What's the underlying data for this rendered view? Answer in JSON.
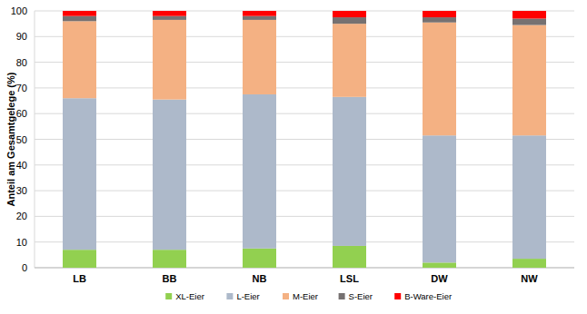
{
  "chart_data": {
    "type": "bar",
    "stacked": true,
    "grid": true,
    "legend": "bottom",
    "y_label": "Anteil am Gesamtgelege (%)",
    "categories": [
      "LB",
      "BB",
      "NB",
      "LSL",
      "DW",
      "NW"
    ],
    "ylim": [
      0,
      100
    ],
    "yticks": [
      0,
      10,
      20,
      30,
      40,
      50,
      60,
      70,
      80,
      90,
      100
    ],
    "series": [
      {
        "name": "XL-Eier",
        "color": "#92d050",
        "values": [
          7,
          7,
          7.5,
          8.5,
          2,
          3.5
        ]
      },
      {
        "name": "L-Eier",
        "color": "#adb9ca",
        "values": [
          59,
          58.5,
          60,
          58,
          49.5,
          48
        ]
      },
      {
        "name": "M-Eier",
        "color": "#f4b183",
        "values": [
          30,
          31,
          29,
          28.5,
          44,
          43
        ]
      },
      {
        "name": "S-Eier",
        "color": "#767171",
        "values": [
          2,
          1.5,
          1.5,
          2.5,
          2,
          2.5
        ]
      },
      {
        "name": "B-Ware-Eier",
        "color": "#ff0000",
        "values": [
          2,
          2,
          2,
          2.5,
          2.5,
          3
        ]
      }
    ]
  }
}
